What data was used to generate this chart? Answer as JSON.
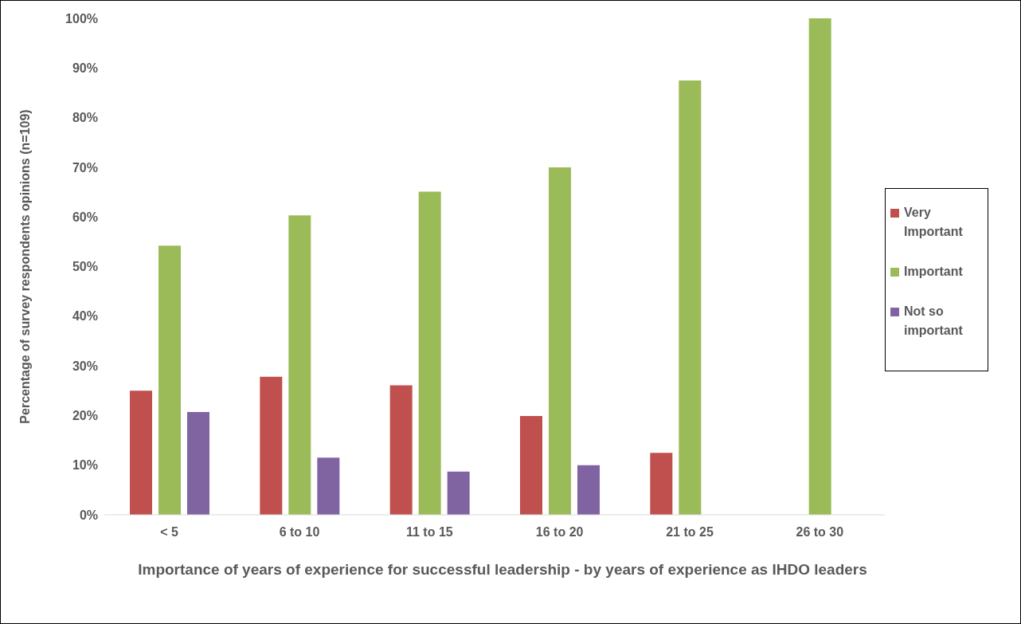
{
  "chart_data": {
    "type": "bar",
    "xlabel": "Importance of years of experience for successful leadership - by years of experience as IHDO leaders",
    "ylabel": "Percentage of survey respondents opinions (n=109)",
    "categories": [
      "< 5",
      "6 to 10",
      "11 to 15",
      "16 to 20",
      "21 to 25",
      "26 to 30"
    ],
    "series": [
      {
        "name": "Very Important",
        "color": "#c0504d",
        "values": [
          25.0,
          27.8,
          26.1,
          19.9,
          12.5,
          0
        ]
      },
      {
        "name": "Important",
        "color": "#9bbb59",
        "values": [
          54.2,
          60.3,
          65.1,
          70.0,
          87.5,
          100
        ]
      },
      {
        "name": "Not so important",
        "color": "#8064a2",
        "values": [
          20.7,
          11.5,
          8.7,
          10.0,
          0,
          0
        ]
      }
    ],
    "ylim": [
      0,
      100
    ],
    "yticks": [
      {
        "value": 0,
        "label": "0%"
      },
      {
        "value": 10,
        "label": "10%"
      },
      {
        "value": 20,
        "label": "20%"
      },
      {
        "value": 30,
        "label": "30%"
      },
      {
        "value": 40,
        "label": "40%"
      },
      {
        "value": 50,
        "label": "50%"
      },
      {
        "value": 60,
        "label": "60%"
      },
      {
        "value": 70,
        "label": "70%"
      },
      {
        "value": 80,
        "label": "80%"
      },
      {
        "value": 90,
        "label": "90%"
      },
      {
        "value": 100,
        "label": "100%"
      }
    ],
    "grid": false,
    "legend": "right"
  }
}
